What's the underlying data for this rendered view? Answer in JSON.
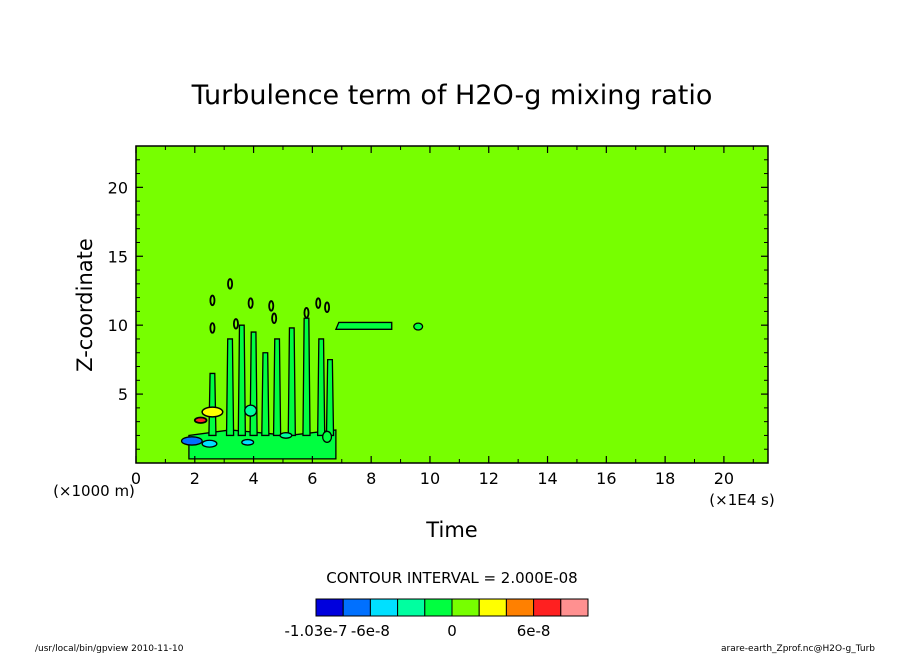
{
  "chart_data": {
    "type": "heatmap",
    "title": "Turbulence term of H2O-g mixing ratio",
    "xlabel": "Time",
    "ylabel": "Z-coordinate",
    "x_unit_label": "(×1E4 s)",
    "y_unit_label": "(×1000 m)",
    "xlim": [
      0,
      21.5
    ],
    "ylim": [
      0,
      23
    ],
    "x_ticks": [
      0,
      2,
      4,
      6,
      8,
      10,
      12,
      14,
      16,
      18,
      20
    ],
    "y_ticks": [
      5,
      10,
      15,
      20
    ],
    "contour_interval_text": "CONTOUR INTERVAL = 2.000E-08",
    "background_color": "#77ff00",
    "colorbar": {
      "colors": [
        "#0000dd",
        "#0070ff",
        "#00e0ff",
        "#00ffa0",
        "#00ff40",
        "#77ff00",
        "#ffff00",
        "#ff8000",
        "#ff2020",
        "#ff9090"
      ],
      "labels": [
        {
          "text": "-1.03e-7",
          "value": -1.03e-07
        },
        {
          "text": "-6e-8",
          "value": -6e-08
        },
        {
          "text": "0",
          "value": 0
        },
        {
          "text": "6e-8",
          "value": 6e-08
        }
      ]
    },
    "features": [
      {
        "region": "lower-left dense structure",
        "x_range": [
          0.5,
          7
        ],
        "z_range": [
          0,
          13
        ]
      },
      {
        "region": "upper tongue",
        "x_range": [
          6.8,
          9.7
        ],
        "z_range": [
          9.5,
          10.3
        ]
      }
    ]
  },
  "footer": {
    "left": "/usr/local/bin/gpview  2010-11-10",
    "right": "arare-earth_Zprof.nc@H2O-g_Turb"
  }
}
